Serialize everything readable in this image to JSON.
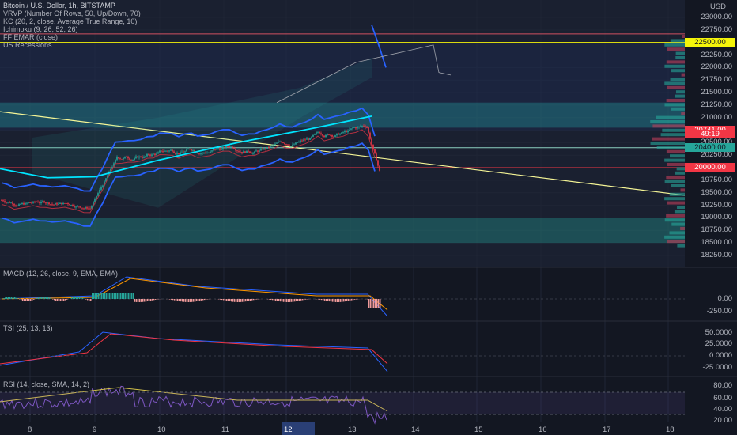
{
  "chart": {
    "title": "Bitcoin / U.S. Dollar, 1h, BITSTAMP",
    "currency": "USD",
    "indicators": [
      "VRVP (Number Of Rows, 50, Up/Down, 70)",
      "KC (20, 2, close, Average True Range, 10)",
      "Ichimoku (9, 26, 52, 26)",
      "FF EMAR (close)",
      "US Recessions"
    ]
  },
  "price_axis": {
    "ticks": [
      "23000.00",
      "22750.00",
      "22250.00",
      "22000.00",
      "21750.00",
      "21500.00",
      "21250.00",
      "21000.00",
      "20500.00",
      "20250.00",
      "19750.00",
      "19500.00",
      "19250.00",
      "19000.00",
      "18750.00",
      "18500.00",
      "18250.00"
    ]
  },
  "price_tags": [
    {
      "label": "22500.00",
      "bg": "#f5f50a",
      "value": 22500
    },
    {
      "label": "20741.00",
      "bg": "#f23645",
      "value": 20741
    },
    {
      "label": "49:19",
      "bg": "#f23645",
      "value": 20660
    },
    {
      "label": "20400.00",
      "bg": "#26a69a",
      "value": 20400
    },
    {
      "label": "20000.00",
      "bg": "#f23645",
      "value": 20000
    }
  ],
  "panes": {
    "macd": {
      "label": "MACD (12, 26, close, 9, EMA, EMA)",
      "ticks": [
        "0.00",
        "-250.00"
      ]
    },
    "tsi": {
      "label": "TSI (25, 13, 13)",
      "ticks": [
        "50.0000",
        "25.0000",
        "0.0000",
        "-25.0000"
      ]
    },
    "rsi": {
      "label": "RSI (14, close, SMA, 14, 2)",
      "ticks": [
        "80.00",
        "60.00",
        "40.00",
        "20.00"
      ]
    }
  },
  "time_axis": {
    "labels": [
      "8",
      "9",
      "10",
      "11",
      "12",
      "13",
      "14",
      "15",
      "16",
      "17",
      "18"
    ],
    "highlight": "12"
  },
  "colors": {
    "bg": "#131722",
    "grid": "#1f2535",
    "up": "#26a69a",
    "down": "#f23645",
    "kc": "#2962ff",
    "ema": "#00e5ff",
    "trend": "#f5f596"
  }
}
